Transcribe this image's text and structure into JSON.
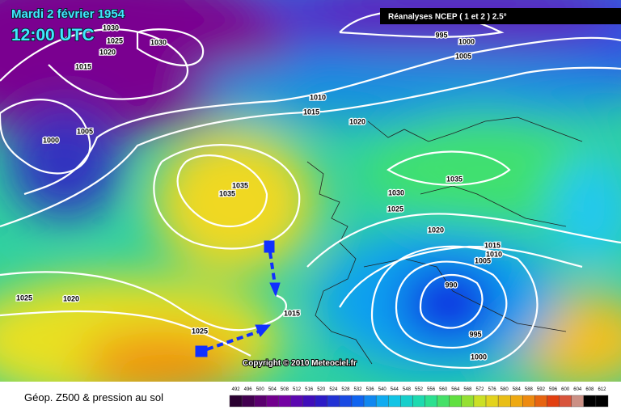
{
  "header": {
    "date": "Mardi 2 février 1954",
    "time": "12:00 UTC",
    "source": "Réanalyses NCEP ( 1 et 2 ) 2.5°"
  },
  "copyright": "Copyright © 2010 Meteociel.fr",
  "isobar_labels": [
    1030,
    1025,
    1020,
    1030,
    1015,
    1005,
    1000,
    1010,
    1015,
    1020,
    995,
    1000,
    1005,
    1035,
    1035,
    1035,
    1030,
    1025,
    1020,
    1015,
    1010,
    1005,
    990,
    995,
    1000,
    1025,
    1020,
    1015,
    1025
  ],
  "legend": {
    "title": "Géop. Z500 & pression au sol",
    "labels": [
      492,
      496,
      500,
      504,
      508,
      512,
      516,
      520,
      524,
      528,
      532,
      536,
      540,
      544,
      548,
      552,
      556,
      560,
      564,
      568,
      572,
      576,
      580,
      584,
      588,
      592,
      596,
      600,
      604,
      608,
      612
    ]
  }
}
